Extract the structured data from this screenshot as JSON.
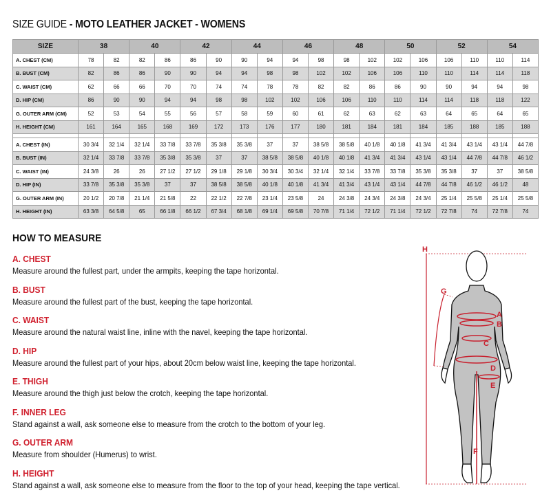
{
  "title": {
    "prefix": "SIZE GUIDE",
    "main": " - MOTO LEATHER JACKET - WOMENS"
  },
  "table": {
    "size_header": "SIZE",
    "sizes": [
      "38",
      "40",
      "42",
      "44",
      "46",
      "48",
      "50",
      "52",
      "54"
    ],
    "cm_rows": [
      {
        "label": "A. CHEST (CM)",
        "values": [
          "78",
          "82",
          "82",
          "86",
          "86",
          "90",
          "90",
          "94",
          "94",
          "98",
          "98",
          "102",
          "102",
          "106",
          "106",
          "110",
          "110",
          "114"
        ]
      },
      {
        "label": "B. BUST (CM)",
        "values": [
          "82",
          "86",
          "86",
          "90",
          "90",
          "94",
          "94",
          "98",
          "98",
          "102",
          "102",
          "106",
          "106",
          "110",
          "110",
          "114",
          "114",
          "118"
        ]
      },
      {
        "label": "C. WAIST (CM)",
        "values": [
          "62",
          "66",
          "66",
          "70",
          "70",
          "74",
          "74",
          "78",
          "78",
          "82",
          "82",
          "86",
          "86",
          "90",
          "90",
          "94",
          "94",
          "98"
        ]
      },
      {
        "label": "D. HIP (CM)",
        "values": [
          "86",
          "90",
          "90",
          "94",
          "94",
          "98",
          "98",
          "102",
          "102",
          "106",
          "106",
          "110",
          "110",
          "114",
          "114",
          "118",
          "118",
          "122"
        ]
      },
      {
        "label": "G. OUTER ARM (CM)",
        "values": [
          "52",
          "53",
          "54",
          "55",
          "56",
          "57",
          "58",
          "59",
          "60",
          "61",
          "62",
          "63",
          "62",
          "63",
          "64",
          "65",
          "64",
          "65"
        ]
      },
      {
        "label": "H. HEIGHT (CM)",
        "values": [
          "161",
          "164",
          "165",
          "168",
          "169",
          "172",
          "173",
          "176",
          "177",
          "180",
          "181",
          "184",
          "181",
          "184",
          "185",
          "188",
          "185",
          "188"
        ]
      }
    ],
    "in_rows": [
      {
        "label": "A. CHEST (IN)",
        "values": [
          "30 3/4",
          "32 1/4",
          "32 1/4",
          "33 7/8",
          "33 7/8",
          "35 3/8",
          "35 3/8",
          "37",
          "37",
          "38 5/8",
          "38 5/8",
          "40 1/8",
          "40 1/8",
          "41 3/4",
          "41 3/4",
          "43 1/4",
          "43 1/4",
          "44 7/8"
        ]
      },
      {
        "label": "B. BUST (IN)",
        "values": [
          "32 1/4",
          "33 7/8",
          "33 7/8",
          "35 3/8",
          "35 3/8",
          "37",
          "37",
          "38 5/8",
          "38 5/8",
          "40 1/8",
          "40 1/8",
          "41 3/4",
          "41 3/4",
          "43 1/4",
          "43 1/4",
          "44 7/8",
          "44 7/8",
          "46 1/2"
        ]
      },
      {
        "label": "C. WAIST (IN)",
        "values": [
          "24 3/8",
          "26",
          "26",
          "27 1/2",
          "27 1/2",
          "29 1/8",
          "29 1/8",
          "30 3/4",
          "30 3/4",
          "32 1/4",
          "32 1/4",
          "33 7/8",
          "33 7/8",
          "35 3/8",
          "35 3/8",
          "37",
          "37",
          "38 5/8"
        ]
      },
      {
        "label": "D. HIP (IN)",
        "values": [
          "33 7/8",
          "35 3/8",
          "35 3/8",
          "37",
          "37",
          "38 5/8",
          "38 5/8",
          "40 1/8",
          "40 1/8",
          "41 3/4",
          "41 3/4",
          "43 1/4",
          "43 1/4",
          "44 7/8",
          "44 7/8",
          "46 1/2",
          "46 1/2",
          "48"
        ]
      },
      {
        "label": "G. OUTER ARM (IN)",
        "values": [
          "20 1/2",
          "20 7/8",
          "21 1/4",
          "21 5/8",
          "22",
          "22 1/2",
          "22 7/8",
          "23 1/4",
          "23 5/8",
          "24",
          "24 3/8",
          "24 3/4",
          "24 3/8",
          "24 3/4",
          "25 1/4",
          "25 5/8",
          "25 1/4",
          "25 5/8"
        ]
      },
      {
        "label": "H. HEIGHT (IN)",
        "values": [
          "63 3/8",
          "64 5/8",
          "65",
          "66 1/8",
          "66 1/2",
          "67 3/4",
          "68 1/8",
          "69 1/4",
          "69 5/8",
          "70 7/8",
          "71 1/4",
          "72 1/2",
          "71 1/4",
          "72 1/2",
          "72 7/8",
          "74",
          "72 7/8",
          "74"
        ]
      }
    ]
  },
  "how_to_measure": {
    "heading": "HOW TO MEASURE",
    "items": [
      {
        "label": "A. CHEST",
        "text": "Measure around the fullest part, under the armpits, keeping the tape horizontal."
      },
      {
        "label": "B. BUST",
        "text": "Measure around the fullest part of the bust, keeping the tape horizontal."
      },
      {
        "label": "C. WAIST",
        "text": "Measure around the natural waist line, inline with the navel, keeping the tape horizontal."
      },
      {
        "label": "D. HIP",
        "text": "Measure around the fullest part of your hips, about 20cm below waist line, keeping the tape horizontal."
      },
      {
        "label": "E. THIGH",
        "text": "Measure around the thigh just below the crotch, keeping the tape horizontal."
      },
      {
        "label": "F. INNER LEG",
        "text": "Stand against a wall, ask someone else to measure from the crotch to the bottom of your leg."
      },
      {
        "label": "G. OUTER ARM",
        "text": "Measure from shoulder (Humerus) to wrist."
      },
      {
        "label": "H. HEIGHT",
        "text": "Stand against a wall, ask someone else to measure from the floor to the top of your head, keeping the tape vertical."
      }
    ]
  },
  "figure": {
    "markers": [
      "H",
      "G",
      "A",
      "B",
      "C",
      "D",
      "E",
      "F"
    ]
  },
  "colors": {
    "accent": "#d0202e",
    "header_gray": "#bdbdbd",
    "row_gray": "#d8d8d8"
  }
}
